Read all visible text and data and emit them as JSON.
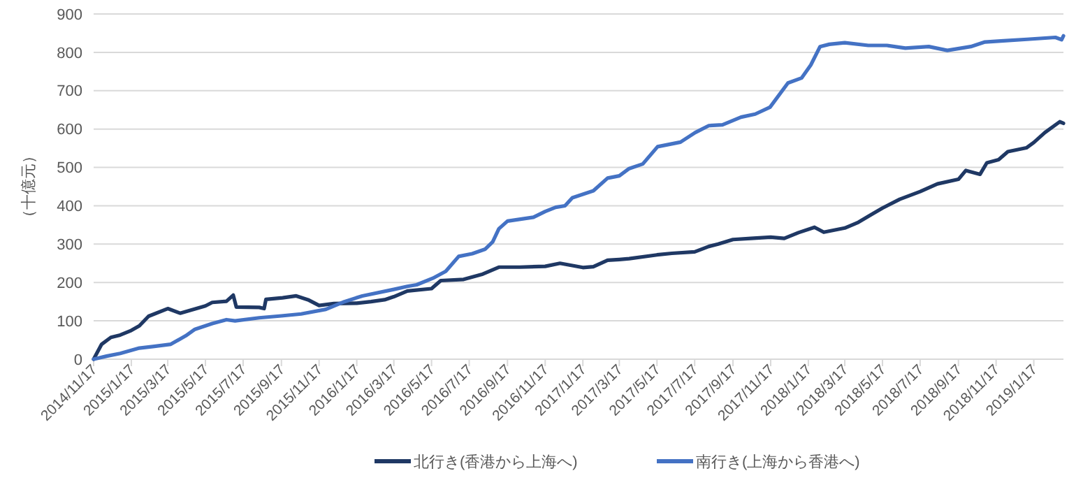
{
  "chart_data": {
    "type": "line",
    "ylabel": "（十億元）",
    "legend": "bottom",
    "grid": "y",
    "marker": "none",
    "line_style": "solid",
    "xlim": [
      "2014-11-17",
      "2019-03-06"
    ],
    "ylim": [
      0,
      900
    ],
    "yticks": [
      0,
      100,
      200,
      300,
      400,
      500,
      600,
      700,
      800,
      900
    ],
    "xticks": [
      {
        "value": "2014-11-17",
        "label": "2014/11/17"
      },
      {
        "value": "2015-01-17",
        "label": "2015/1/17"
      },
      {
        "value": "2015-03-17",
        "label": "2015/3/17"
      },
      {
        "value": "2015-05-17",
        "label": "2015/5/17"
      },
      {
        "value": "2015-07-17",
        "label": "2015/7/17"
      },
      {
        "value": "2015-09-17",
        "label": "2015/9/17"
      },
      {
        "value": "2015-11-17",
        "label": "2015/11/17"
      },
      {
        "value": "2016-01-17",
        "label": "2016/1/17"
      },
      {
        "value": "2016-03-17",
        "label": "2016/3/17"
      },
      {
        "value": "2016-05-17",
        "label": "2016/5/17"
      },
      {
        "value": "2016-07-17",
        "label": "2016/7/17"
      },
      {
        "value": "2016-09-17",
        "label": "2016/9/17"
      },
      {
        "value": "2016-11-17",
        "label": "2016/11/17"
      },
      {
        "value": "2017-01-17",
        "label": "2017/1/17"
      },
      {
        "value": "2017-03-17",
        "label": "2017/3/17"
      },
      {
        "value": "2017-05-17",
        "label": "2017/5/17"
      },
      {
        "value": "2017-07-17",
        "label": "2017/7/17"
      },
      {
        "value": "2017-09-17",
        "label": "2017/9/17"
      },
      {
        "value": "2017-11-17",
        "label": "2017/11/17"
      },
      {
        "value": "2018-01-17",
        "label": "2018/1/17"
      },
      {
        "value": "2018-03-17",
        "label": "2018/3/17"
      },
      {
        "value": "2018-05-17",
        "label": "2018/5/17"
      },
      {
        "value": "2018-07-17",
        "label": "2018/7/17"
      },
      {
        "value": "2018-09-17",
        "label": "2018/9/17"
      },
      {
        "value": "2018-11-17",
        "label": "2018/11/17"
      },
      {
        "value": "2019-01-17",
        "label": "2019/1/17"
      }
    ],
    "series": [
      {
        "name": "北行き(香港から上海へ)",
        "color": "#1f3864",
        "x": [
          "2014-11-17",
          "2014-11-30",
          "2014-12-15",
          "2014-12-30",
          "2015-01-17",
          "2015-01-30",
          "2015-02-14",
          "2015-03-17",
          "2015-04-06",
          "2015-05-17",
          "2015-05-28",
          "2015-06-20",
          "2015-07-01",
          "2015-07-06",
          "2015-08-12",
          "2015-08-20",
          "2015-08-23",
          "2015-09-19",
          "2015-10-11",
          "2015-10-30",
          "2015-11-17",
          "2015-12-11",
          "2016-01-17",
          "2016-02-09",
          "2016-03-02",
          "2016-03-17",
          "2016-04-08",
          "2016-05-17",
          "2016-06-01",
          "2016-07-08",
          "2016-08-08",
          "2016-09-03",
          "2016-10-07",
          "2016-11-17",
          "2016-12-11",
          "2017-01-17",
          "2017-02-03",
          "2017-02-26",
          "2017-03-17",
          "2017-04-02",
          "2017-05-17",
          "2017-06-10",
          "2017-07-17",
          "2017-08-09",
          "2017-08-24",
          "2017-09-17",
          "2017-10-16",
          "2017-11-17",
          "2017-12-09",
          "2018-01-01",
          "2018-01-27",
          "2018-02-11",
          "2018-03-17",
          "2018-04-08",
          "2018-04-30",
          "2018-05-17",
          "2018-06-14",
          "2018-07-17",
          "2018-08-14",
          "2018-09-17",
          "2018-09-29",
          "2018-10-22",
          "2018-11-02",
          "2018-11-21",
          "2018-12-06",
          "2019-01-05",
          "2019-01-17",
          "2019-02-04",
          "2019-02-28",
          "2019-03-06"
        ],
        "values": [
          0,
          39,
          57,
          63,
          75,
          87,
          112,
          132,
          120,
          139,
          148,
          151,
          167,
          136,
          135,
          132,
          156,
          160,
          165,
          155,
          140,
          145,
          146,
          150,
          155,
          163,
          178,
          184,
          205,
          208,
          222,
          240,
          240,
          242,
          250,
          239,
          241,
          258,
          260,
          262,
          272,
          276,
          280,
          294,
          300,
          312,
          315,
          318,
          315,
          330,
          344,
          331,
          342,
          357,
          378,
          394,
          417,
          437,
          457,
          469,
          492,
          482,
          512,
          520,
          541,
          551,
          565,
          591,
          619,
          615
        ]
      },
      {
        "name": "南行き(上海から香港へ)",
        "color": "#4472c4",
        "x": [
          "2014-11-17",
          "2014-12-08",
          "2014-12-30",
          "2015-01-30",
          "2015-02-21",
          "2015-03-22",
          "2015-04-15",
          "2015-04-30",
          "2015-05-28",
          "2015-06-20",
          "2015-07-04",
          "2015-08-12",
          "2015-09-17",
          "2015-10-19",
          "2015-11-28",
          "2015-12-28",
          "2016-01-26",
          "2016-03-17",
          "2016-04-08",
          "2016-04-23",
          "2016-05-19",
          "2016-06-09",
          "2016-06-30",
          "2016-07-22",
          "2016-08-12",
          "2016-08-24",
          "2016-09-03",
          "2016-09-17",
          "2016-10-29",
          "2016-11-17",
          "2016-12-04",
          "2016-12-19",
          "2016-12-31",
          "2017-02-03",
          "2017-02-26",
          "2017-03-17",
          "2017-04-02",
          "2017-04-24",
          "2017-05-18",
          "2017-06-24",
          "2017-07-18",
          "2017-08-09",
          "2017-08-31",
          "2017-09-30",
          "2017-10-23",
          "2017-11-16",
          "2017-12-15",
          "2018-01-06",
          "2018-01-21",
          "2018-02-05",
          "2018-02-20",
          "2018-03-17",
          "2018-04-24",
          "2018-05-24",
          "2018-06-23",
          "2018-07-31",
          "2018-08-30",
          "2018-10-07",
          "2018-10-30",
          "2018-11-29",
          "2019-01-06",
          "2019-02-21",
          "2019-03-03",
          "2019-03-06"
        ],
        "values": [
          0,
          8,
          15,
          29,
          33,
          39,
          61,
          78,
          93,
          103,
          100,
          108,
          113,
          118,
          130,
          150,
          165,
          182,
          190,
          194,
          211,
          229,
          268,
          275,
          287,
          306,
          340,
          360,
          370,
          385,
          396,
          400,
          421,
          439,
          472,
          478,
          497,
          509,
          554,
          566,
          591,
          609,
          611,
          631,
          639,
          657,
          720,
          733,
          767,
          815,
          821,
          825,
          818,
          818,
          811,
          815,
          805,
          815,
          827,
          830,
          834,
          839,
          833,
          843
        ]
      }
    ]
  }
}
